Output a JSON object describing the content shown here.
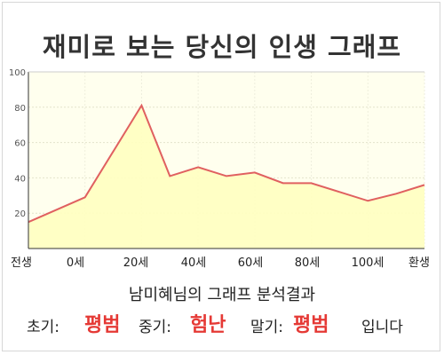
{
  "title": "재미로 보는 당신의 인생 그래프",
  "analysis_title": "남미혜님의 그래프 분석결과",
  "summary": {
    "early_label": "초기:",
    "early_value": "평범",
    "middle_label": "중기:",
    "middle_value": "험난",
    "late_label": "말기:",
    "late_value": "평범",
    "ending": "입니다"
  },
  "colors": {
    "line": "#e06060",
    "fill": "#ffffc0",
    "accent": "#e53935"
  },
  "chart_data": {
    "type": "area",
    "title": "재미로 보는 당신의 인생 그래프",
    "xlabel": "",
    "ylabel": "",
    "ylim": [
      0,
      100
    ],
    "yticks": [
      20,
      40,
      60,
      80,
      100
    ],
    "grid": true,
    "x_tick_labels": [
      "전생",
      "0세",
      "20세",
      "40세",
      "60세",
      "80세",
      "100세",
      "환생"
    ],
    "x": [
      -20,
      0,
      10,
      20,
      30,
      40,
      50,
      60,
      70,
      80,
      90,
      100,
      110,
      120
    ],
    "values": [
      15,
      29,
      55,
      81,
      41,
      46,
      41,
      43,
      37,
      37,
      32,
      27,
      31,
      36
    ]
  }
}
